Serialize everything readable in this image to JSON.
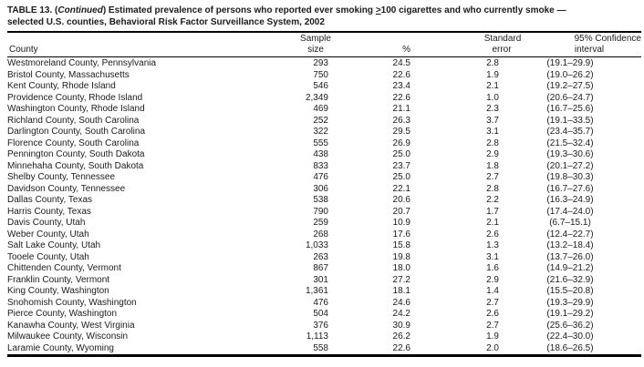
{
  "title": {
    "prefix": "TABLE 13. (",
    "continued": "Continued",
    "after_continued": ") Estimated prevalence of persons who reported ever smoking ",
    "gte": ">",
    "line1_rest": "100 cigarettes and who currently smoke —",
    "line2": "selected U.S. counties, Behavioral Risk Factor Surveillance System, 2002"
  },
  "columns": {
    "county": "County",
    "sample_line1": "Sample",
    "sample_line2": "size",
    "percent": "%",
    "se_line1": "Standard",
    "se_line2": "error",
    "ci_line1": "95% Confidence",
    "ci_line2": "interval"
  },
  "table": {
    "rows": [
      {
        "county": "Westmoreland County, Pennsylvania",
        "sample": "293",
        "pct": "24.5",
        "se": "2.8",
        "ci": "(19.1–29.9)"
      },
      {
        "county": "Bristol County, Massachusetts",
        "sample": "750",
        "pct": "22.6",
        "se": "1.9",
        "ci": "(19.0–26.2)"
      },
      {
        "county": "Kent County, Rhode Island",
        "sample": "546",
        "pct": "23.4",
        "se": "2.1",
        "ci": "(19.2–27.5)"
      },
      {
        "county": "Providence County, Rhode Island",
        "sample": "2,349",
        "pct": "22.6",
        "se": "1.0",
        "ci": "(20.6–24.7)"
      },
      {
        "county": "Washington County, Rhode Island",
        "sample": "469",
        "pct": "21.1",
        "se": "2.3",
        "ci": "(16.7–25.6)"
      },
      {
        "county": "Richland County, South Carolina",
        "sample": "252",
        "pct": "26.3",
        "se": "3.7",
        "ci": "(19.1–33.5)"
      },
      {
        "county": "Darlington County, South Carolina",
        "sample": "322",
        "pct": "29.5",
        "se": "3.1",
        "ci": "(23.4–35.7)"
      },
      {
        "county": "Florence County, South Carolina",
        "sample": "555",
        "pct": "26.9",
        "se": "2.8",
        "ci": "(21.5–32.4)"
      },
      {
        "county": "Pennington County, South Dakota",
        "sample": "438",
        "pct": "25.0",
        "se": "2.9",
        "ci": "(19.3–30.6)"
      },
      {
        "county": "Minnehaha County, South Dakota",
        "sample": "833",
        "pct": "23.7",
        "se": "1.8",
        "ci": "(20.1–27.2)"
      },
      {
        "county": "Shelby County, Tennessee",
        "sample": "476",
        "pct": "25.0",
        "se": "2.7",
        "ci": "(19.8–30.3)"
      },
      {
        "county": "Davidson County, Tennessee",
        "sample": "306",
        "pct": "22.1",
        "se": "2.8",
        "ci": "(16.7–27.6)"
      },
      {
        "county": "Dallas County, Texas",
        "sample": "538",
        "pct": "20.6",
        "se": "2.2",
        "ci": "(16.3–24.9)"
      },
      {
        "county": "Harris County, Texas",
        "sample": "790",
        "pct": "20.7",
        "se": "1.7",
        "ci": "(17.4–24.0)"
      },
      {
        "county": "Davis County, Utah",
        "sample": "259",
        "pct": "10.9",
        "se": "2.1",
        "ci": "(6.7–15.1)"
      },
      {
        "county": "Weber County, Utah",
        "sample": "268",
        "pct": "17.6",
        "se": "2.6",
        "ci": "(12.4–22.7)"
      },
      {
        "county": "Salt Lake County, Utah",
        "sample": "1,033",
        "pct": "15.8",
        "se": "1.3",
        "ci": "(13.2–18.4)"
      },
      {
        "county": "Tooele County, Utah",
        "sample": "263",
        "pct": "19.8",
        "se": "3.1",
        "ci": "(13.7–26.0)"
      },
      {
        "county": "Chittenden County, Vermont",
        "sample": "867",
        "pct": "18.0",
        "se": "1.6",
        "ci": "(14.9–21.2)"
      },
      {
        "county": "Franklin County, Vermont",
        "sample": "301",
        "pct": "27.2",
        "se": "2.9",
        "ci": "(21.6–32.9)"
      },
      {
        "county": "King County, Washington",
        "sample": "1,361",
        "pct": "18.1",
        "se": "1.4",
        "ci": "(15.5–20.8)"
      },
      {
        "county": "Snohomish County, Washington",
        "sample": "476",
        "pct": "24.6",
        "se": "2.7",
        "ci": "(19.3–29.9)"
      },
      {
        "county": "Pierce County, Washington",
        "sample": "504",
        "pct": "24.2",
        "se": "2.6",
        "ci": "(19.1–29.2)"
      },
      {
        "county": "Kanawha County, West Virginia",
        "sample": "376",
        "pct": "30.9",
        "se": "2.7",
        "ci": "(25.6–36.2)"
      },
      {
        "county": "Milwaukee County, Wisconsin",
        "sample": "1,113",
        "pct": "26.2",
        "se": "1.9",
        "ci": "(22.4–30.0)"
      },
      {
        "county": "Laramie County, Wyoming",
        "sample": "558",
        "pct": "22.6",
        "se": "2.0",
        "ci": "(18.6–26.5)"
      }
    ]
  },
  "colors": {
    "text": "#1b1b1b",
    "background": "#ffffff",
    "rule": "#000000"
  }
}
